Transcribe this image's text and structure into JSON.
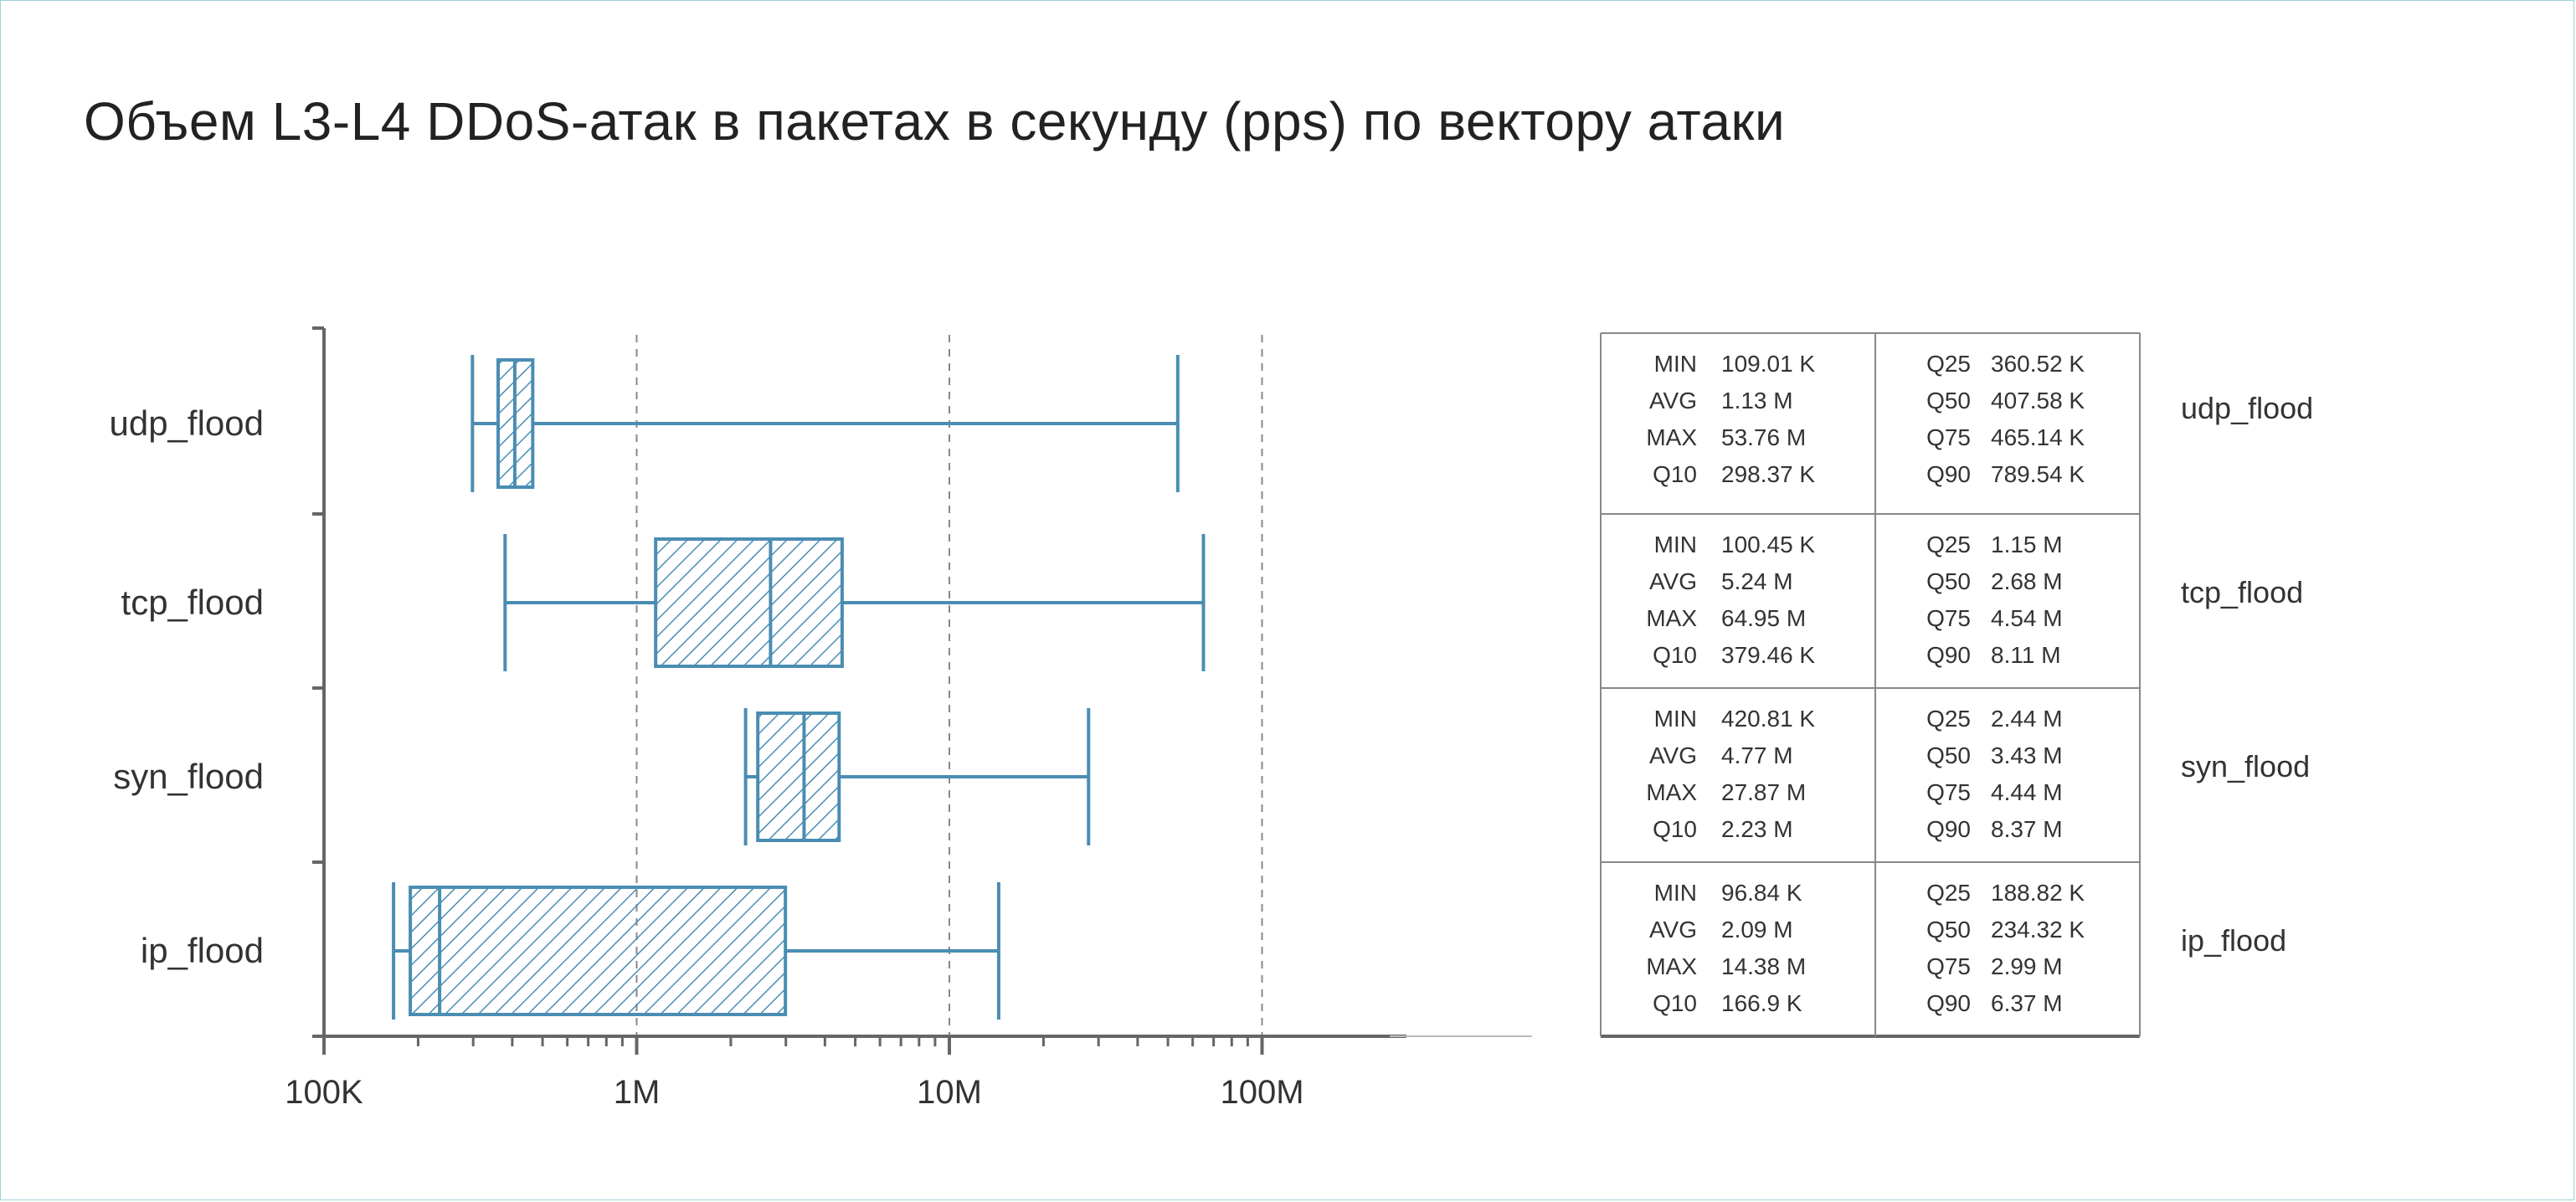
{
  "title": "Объем L3-L4 DDoS-атак в пакетах в секунду (pps) по вектору атаки",
  "colors": {
    "box": "#4a8db3",
    "axis": "#666666",
    "grid": "#888888",
    "text": "#333333",
    "table": "#888888"
  },
  "chart_data": {
    "type": "boxplot",
    "title": "Объем L3-L4 DDoS-атак в пакетах в секунду (pps) по вектору атаки",
    "xscale": "log",
    "xlim": [
      100000,
      1000000000
    ],
    "xticks": [
      {
        "value": 100000,
        "label": "100K"
      },
      {
        "value": 1000000,
        "label": "1M"
      },
      {
        "value": 10000000,
        "label": "10M"
      },
      {
        "value": 100000000,
        "label": "100M"
      }
    ],
    "gridlines": [
      1000000,
      10000000,
      100000000
    ],
    "series": [
      {
        "name": "udp_flood",
        "whisker_low": 298370,
        "q25": 360520,
        "median": 407580,
        "q75": 465140,
        "whisker_high": 53760000,
        "stats_left": [
          {
            "label": "MIN",
            "value": "109.01 K"
          },
          {
            "label": "AVG",
            "value": "1.13 M"
          },
          {
            "label": "MAX",
            "value": "53.76 M"
          },
          {
            "label": "Q10",
            "value": "298.37 K"
          }
        ],
        "stats_right": [
          {
            "label": "Q25",
            "value": "360.52 K"
          },
          {
            "label": "Q50",
            "value": "407.58 K"
          },
          {
            "label": "Q75",
            "value": "465.14 K"
          },
          {
            "label": "Q90",
            "value": "789.54 K"
          }
        ]
      },
      {
        "name": "tcp_flood",
        "whisker_low": 379460,
        "q25": 1150000,
        "median": 2680000,
        "q75": 4540000,
        "whisker_high": 64950000,
        "stats_left": [
          {
            "label": "MIN",
            "value": "100.45 K"
          },
          {
            "label": "AVG",
            "value": "5.24 M"
          },
          {
            "label": "MAX",
            "value": "64.95 M"
          },
          {
            "label": "Q10",
            "value": "379.46 K"
          }
        ],
        "stats_right": [
          {
            "label": "Q25",
            "value": "1.15 M"
          },
          {
            "label": "Q50",
            "value": "2.68 M"
          },
          {
            "label": "Q75",
            "value": "4.54 M"
          },
          {
            "label": "Q90",
            "value": "8.11 M"
          }
        ]
      },
      {
        "name": "syn_flood",
        "whisker_low": 2230000,
        "q25": 2440000,
        "median": 3430000,
        "q75": 4440000,
        "whisker_high": 27870000,
        "stats_left": [
          {
            "label": "MIN",
            "value": "420.81 K"
          },
          {
            "label": "AVG",
            "value": "4.77 M"
          },
          {
            "label": "MAX",
            "value": "27.87 M"
          },
          {
            "label": "Q10",
            "value": "2.23 M"
          }
        ],
        "stats_right": [
          {
            "label": "Q25",
            "value": "2.44 M"
          },
          {
            "label": "Q50",
            "value": "3.43 M"
          },
          {
            "label": "Q75",
            "value": "4.44 M"
          },
          {
            "label": "Q90",
            "value": "8.37 M"
          }
        ]
      },
      {
        "name": "ip_flood",
        "whisker_low": 166900,
        "q25": 188820,
        "median": 234320,
        "q75": 2990000,
        "whisker_high": 14380000,
        "stats_left": [
          {
            "label": "MIN",
            "value": "96.84 K"
          },
          {
            "label": "AVG",
            "value": "2.09 M"
          },
          {
            "label": "MAX",
            "value": "14.38 M"
          },
          {
            "label": "Q10",
            "value": "166.9 K"
          }
        ],
        "stats_right": [
          {
            "label": "Q25",
            "value": "188.82 K"
          },
          {
            "label": "Q50",
            "value": "234.32 K"
          },
          {
            "label": "Q75",
            "value": "2.99 M"
          },
          {
            "label": "Q90",
            "value": "6.37 M"
          }
        ]
      }
    ]
  }
}
